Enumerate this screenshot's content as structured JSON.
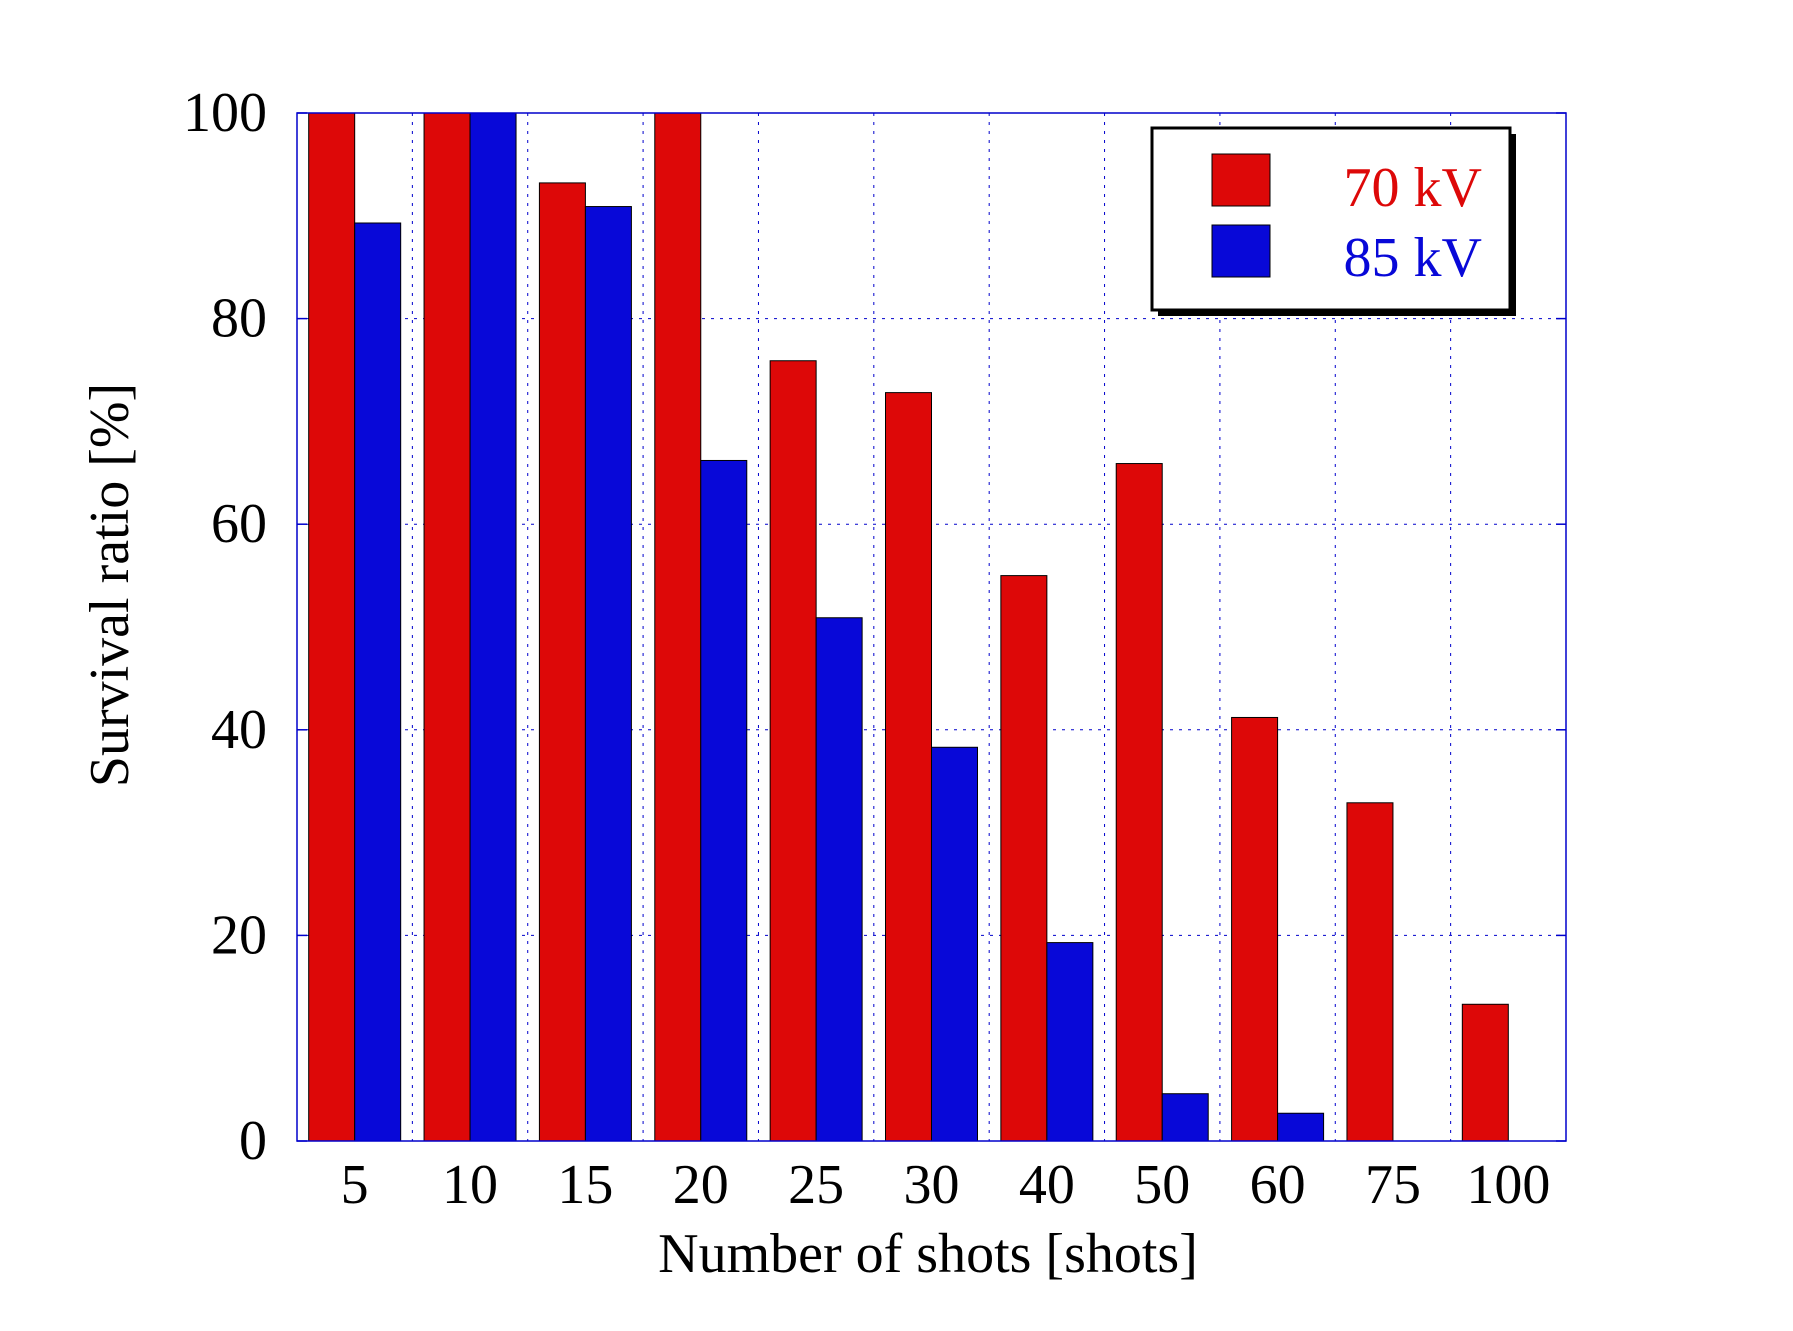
{
  "chart_data": {
    "type": "bar",
    "title": "",
    "xlabel": "Number of shots [shots]",
    "ylabel": "Survival ratio [%]",
    "categories": [
      "5",
      "10",
      "15",
      "20",
      "25",
      "30",
      "40",
      "50",
      "60",
      "75",
      "100"
    ],
    "ylim": [
      0,
      100
    ],
    "yticks": [
      0,
      20,
      40,
      60,
      80,
      100
    ],
    "yticks_text": [
      "0",
      "20",
      "40",
      "60",
      "80",
      "100"
    ],
    "grid": true,
    "legend_position": "top-right",
    "series": [
      {
        "name": "70 kV",
        "color": "#dd0808",
        "values": [
          100,
          100,
          93.2,
          100,
          75.9,
          72.8,
          55.0,
          65.9,
          41.2,
          32.9,
          13.3
        ]
      },
      {
        "name": "85 kV",
        "color": "#0808d8",
        "values": [
          89.3,
          100,
          90.9,
          66.2,
          50.9,
          38.3,
          19.3,
          4.6,
          2.7,
          0,
          0
        ]
      }
    ]
  }
}
